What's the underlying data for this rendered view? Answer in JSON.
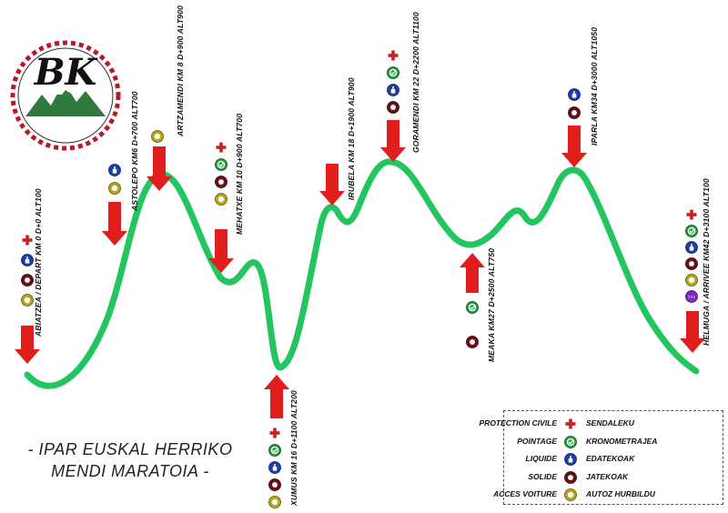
{
  "logo": {
    "text": "BK"
  },
  "title": {
    "line1": "- IPAR EUSKAL HERRIKO",
    "line2": "MENDI MARATOIA -"
  },
  "checkpoints": [
    {
      "label": "ABIATZEA / DEPART KM 0 D+0 ALT100"
    },
    {
      "label": "ASTOLEPO KM6 D+700 ALT700"
    },
    {
      "label": "ARTZAMENDI KM 8 D+900 ALT900"
    },
    {
      "label": "MEHATXE KM 10 D+900 ALT700"
    },
    {
      "label": "XUMUS KM 16 D+1100 ALT200"
    },
    {
      "label": "IRUBELA KM 18 D+1900 ALT900"
    },
    {
      "label": "GORAMENDI KM 22 D+2200 ALT1100"
    },
    {
      "label": "MEAKA KM27 D+2500 ALT750"
    },
    {
      "label": "IPARLA KM34 D+3000 ALT1050"
    },
    {
      "label": "HELMUGA / ARRIVEE KM42 D+3100 ALT100"
    }
  ],
  "legend": {
    "items": [
      {
        "fr": "PROTECTION CIVILE",
        "eu": "SENDALEKU",
        "icon": "red-cross-icon"
      },
      {
        "fr": "POINTAGE",
        "eu": "KRONOMETRAJEA",
        "icon": "timing-check-icon"
      },
      {
        "fr": "LIQUIDE",
        "eu": "EDATEKOAK",
        "icon": "drink-icon"
      },
      {
        "fr": "SOLIDE",
        "eu": "JATEKOAK",
        "icon": "food-icon"
      },
      {
        "fr": "ACCES VOITURE",
        "eu": "AUTOZ HURBILDU",
        "icon": "car-access-icon"
      }
    ]
  },
  "colors": {
    "profile": "#22c55e",
    "arrow": "#e11d1d",
    "cross": "#cc1f1f",
    "timing": "#1f9c3a",
    "drink": "#1a3fa8",
    "food": "#6b0f14",
    "car": "#b8a418",
    "finish": "#7a2bbf"
  }
}
